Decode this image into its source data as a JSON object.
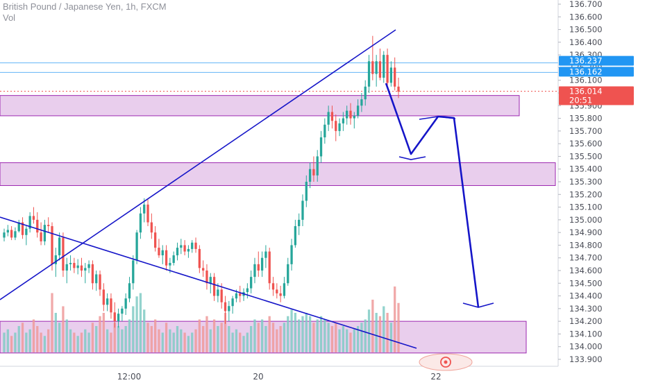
{
  "header": {
    "title": "British Pound / Japanese Yen, 1h, FXCM",
    "volume_label": "Vol"
  },
  "chart_data": {
    "type": "candlestick",
    "symbol": "British Pound / Japanese Yen",
    "interval": "1h",
    "source": "FXCM",
    "y_axis": {
      "min": 133.9,
      "max": 136.7,
      "step": 0.1,
      "ticks": [
        "133.900",
        "134.000",
        "134.100",
        "134.200",
        "134.300",
        "134.400",
        "134.500",
        "134.600",
        "134.700",
        "134.800",
        "134.900",
        "135.000",
        "135.100",
        "135.200",
        "135.300",
        "135.400",
        "135.500",
        "135.600",
        "135.700",
        "135.800",
        "135.900",
        "136.000",
        "136.100",
        "136.200",
        "136.300",
        "136.400",
        "136.500",
        "136.600",
        "136.700"
      ]
    },
    "x_axis": {
      "labels": [
        "12:00",
        "20",
        "22"
      ]
    },
    "price_tags": [
      {
        "value": "136.237",
        "color": "#2196f3"
      },
      {
        "value": "136.162",
        "color": "#2196f3"
      },
      {
        "value": "136.014",
        "color": "#ef5350"
      },
      {
        "value": "20:51",
        "color": "#ef5350"
      }
    ],
    "horizontal_lines": [
      136.237,
      136.162
    ],
    "last_price": 136.014,
    "zones": [
      {
        "from": 135.82,
        "to": 135.98
      },
      {
        "from": 135.27,
        "to": 135.45
      },
      {
        "from": 133.95,
        "to": 134.2
      }
    ],
    "colors": {
      "up": "#26a69a",
      "down": "#ef5350",
      "zone": "#e1bee7",
      "lines": "#1515c8"
    },
    "candles": [
      [
        134.86,
        134.93,
        134.83,
        134.9
      ],
      [
        134.9,
        134.96,
        134.87,
        134.92
      ],
      [
        134.92,
        134.95,
        134.84,
        134.86
      ],
      [
        134.86,
        134.94,
        134.84,
        134.91
      ],
      [
        134.91,
        135.0,
        134.9,
        134.98
      ],
      [
        134.98,
        135.02,
        134.85,
        134.88
      ],
      [
        134.88,
        134.95,
        134.8,
        134.93
      ],
      [
        134.93,
        135.06,
        134.9,
        135.03
      ],
      [
        135.03,
        135.1,
        134.97,
        135.0
      ],
      [
        135.0,
        135.06,
        134.86,
        134.9
      ],
      [
        134.9,
        134.98,
        134.8,
        134.83
      ],
      [
        134.83,
        135.0,
        134.8,
        134.96
      ],
      [
        134.96,
        135.02,
        134.9,
        134.95
      ],
      [
        134.95,
        134.98,
        134.6,
        134.65
      ],
      [
        134.65,
        134.78,
        134.55,
        134.72
      ],
      [
        134.72,
        134.9,
        134.68,
        134.86
      ],
      [
        134.86,
        134.9,
        134.55,
        134.6
      ],
      [
        134.6,
        134.7,
        134.5,
        134.65
      ],
      [
        134.65,
        134.72,
        134.6,
        134.66
      ],
      [
        134.66,
        134.7,
        134.58,
        134.62
      ],
      [
        134.62,
        134.69,
        134.57,
        134.64
      ],
      [
        134.64,
        134.7,
        134.55,
        134.6
      ],
      [
        134.6,
        134.66,
        134.5,
        134.62
      ],
      [
        134.62,
        134.68,
        134.58,
        134.65
      ],
      [
        134.65,
        134.68,
        134.45,
        134.5
      ],
      [
        134.5,
        134.6,
        134.44,
        134.57
      ],
      [
        134.57,
        134.6,
        134.4,
        134.45
      ],
      [
        134.45,
        134.5,
        134.28,
        134.33
      ],
      [
        134.33,
        134.42,
        134.28,
        134.38
      ],
      [
        134.38,
        134.42,
        134.22,
        134.27
      ],
      [
        134.27,
        134.35,
        134.15,
        134.2
      ],
      [
        134.2,
        134.3,
        134.15,
        134.26
      ],
      [
        134.26,
        134.32,
        134.2,
        134.3
      ],
      [
        134.3,
        134.42,
        134.25,
        134.38
      ],
      [
        134.38,
        134.55,
        134.35,
        134.5
      ],
      [
        134.5,
        134.72,
        134.45,
        134.68
      ],
      [
        134.68,
        134.92,
        134.65,
        134.9
      ],
      [
        134.9,
        135.1,
        134.85,
        135.05
      ],
      [
        135.05,
        135.17,
        134.98,
        135.12
      ],
      [
        135.12,
        135.16,
        134.95,
        134.98
      ],
      [
        134.98,
        135.05,
        134.85,
        134.9
      ],
      [
        134.9,
        134.95,
        134.75,
        134.78
      ],
      [
        134.78,
        134.85,
        134.7,
        134.72
      ],
      [
        134.72,
        134.8,
        134.65,
        134.76
      ],
      [
        134.76,
        134.8,
        134.6,
        134.64
      ],
      [
        134.64,
        134.7,
        134.58,
        134.66
      ],
      [
        134.66,
        134.75,
        134.64,
        134.72
      ],
      [
        134.72,
        134.82,
        134.68,
        134.78
      ],
      [
        134.78,
        134.85,
        134.73,
        134.8
      ],
      [
        134.8,
        134.84,
        134.72,
        134.75
      ],
      [
        134.75,
        134.8,
        134.7,
        134.77
      ],
      [
        134.77,
        134.84,
        134.74,
        134.82
      ],
      [
        134.82,
        134.86,
        134.74,
        134.77
      ],
      [
        134.77,
        134.8,
        134.58,
        134.62
      ],
      [
        134.62,
        134.68,
        134.55,
        134.6
      ],
      [
        134.6,
        134.65,
        134.45,
        134.5
      ],
      [
        134.5,
        134.58,
        134.42,
        134.55
      ],
      [
        134.55,
        134.58,
        134.36,
        134.4
      ],
      [
        134.4,
        134.5,
        134.35,
        134.45
      ],
      [
        134.45,
        134.5,
        134.3,
        134.35
      ],
      [
        134.35,
        134.4,
        134.18,
        134.28
      ],
      [
        134.28,
        134.36,
        134.2,
        134.32
      ],
      [
        134.32,
        134.4,
        134.26,
        134.38
      ],
      [
        134.38,
        134.45,
        134.35,
        134.42
      ],
      [
        134.42,
        134.48,
        134.35,
        134.4
      ],
      [
        134.4,
        134.46,
        134.36,
        134.43
      ],
      [
        134.43,
        134.5,
        134.38,
        134.46
      ],
      [
        134.46,
        134.6,
        134.42,
        134.55
      ],
      [
        134.55,
        134.7,
        134.5,
        134.65
      ],
      [
        134.65,
        134.75,
        134.55,
        134.6
      ],
      [
        134.6,
        134.75,
        134.55,
        134.7
      ],
      [
        134.7,
        134.8,
        134.62,
        134.75
      ],
      [
        134.75,
        134.78,
        134.45,
        134.5
      ],
      [
        134.5,
        134.55,
        134.4,
        134.45
      ],
      [
        134.45,
        134.5,
        134.38,
        134.42
      ],
      [
        134.42,
        134.48,
        134.35,
        134.4
      ],
      [
        134.4,
        134.55,
        134.38,
        134.5
      ],
      [
        134.5,
        134.7,
        134.48,
        134.65
      ],
      [
        134.65,
        134.85,
        134.6,
        134.8
      ],
      [
        134.8,
        135.0,
        134.78,
        134.95
      ],
      [
        134.95,
        135.05,
        134.88,
        135.0
      ],
      [
        135.0,
        135.2,
        134.95,
        135.15
      ],
      [
        135.15,
        135.35,
        135.1,
        135.3
      ],
      [
        135.3,
        135.45,
        135.25,
        135.4
      ],
      [
        135.4,
        135.5,
        135.3,
        135.35
      ],
      [
        135.35,
        135.55,
        135.3,
        135.5
      ],
      [
        135.5,
        135.7,
        135.45,
        135.65
      ],
      [
        135.65,
        135.8,
        135.6,
        135.75
      ],
      [
        135.75,
        135.9,
        135.7,
        135.85
      ],
      [
        135.85,
        135.9,
        135.72,
        135.78
      ],
      [
        135.78,
        135.83,
        135.62,
        135.7
      ],
      [
        135.7,
        135.8,
        135.66,
        135.76
      ],
      [
        135.76,
        135.85,
        135.7,
        135.8
      ],
      [
        135.8,
        135.9,
        135.75,
        135.86
      ],
      [
        135.86,
        135.92,
        135.75,
        135.8
      ],
      [
        135.8,
        135.85,
        135.72,
        135.82
      ],
      [
        135.82,
        135.95,
        135.8,
        135.9
      ],
      [
        135.9,
        136.0,
        135.85,
        135.95
      ],
      [
        135.95,
        136.1,
        135.9,
        136.05
      ],
      [
        136.05,
        136.3,
        136.0,
        136.25
      ],
      [
        136.25,
        136.45,
        136.1,
        136.15
      ],
      [
        136.15,
        136.3,
        136.05,
        136.25
      ],
      [
        136.25,
        136.35,
        136.1,
        136.12
      ],
      [
        136.12,
        136.33,
        136.08,
        136.3
      ],
      [
        136.3,
        136.35,
        136.05,
        136.08
      ],
      [
        136.08,
        136.25,
        136.05,
        136.2
      ],
      [
        136.2,
        136.28,
        136.02,
        136.05
      ],
      [
        136.05,
        136.12,
        135.96,
        136.01
      ]
    ],
    "volumes": [
      0.3,
      0.35,
      0.25,
      0.3,
      0.4,
      0.45,
      0.3,
      0.35,
      0.5,
      0.4,
      0.3,
      0.25,
      0.35,
      0.9,
      0.6,
      0.45,
      0.7,
      0.5,
      0.35,
      0.3,
      0.25,
      0.3,
      0.35,
      0.3,
      0.45,
      0.4,
      0.55,
      0.6,
      0.35,
      0.3,
      0.45,
      0.4,
      0.35,
      0.4,
      0.5,
      0.7,
      0.85,
      0.9,
      0.65,
      0.45,
      0.4,
      0.5,
      0.35,
      0.3,
      0.45,
      0.35,
      0.3,
      0.4,
      0.35,
      0.3,
      0.25,
      0.3,
      0.35,
      0.5,
      0.4,
      0.55,
      0.35,
      0.5,
      0.4,
      0.45,
      0.6,
      0.4,
      0.3,
      0.35,
      0.3,
      0.25,
      0.3,
      0.4,
      0.5,
      0.45,
      0.5,
      0.4,
      0.55,
      0.45,
      0.35,
      0.4,
      0.45,
      0.55,
      0.65,
      0.6,
      0.5,
      0.55,
      0.6,
      0.55,
      0.45,
      0.5,
      0.55,
      0.5,
      0.45,
      0.4,
      0.45,
      0.35,
      0.4,
      0.35,
      0.3,
      0.35,
      0.4,
      0.45,
      0.5,
      0.65,
      0.8,
      0.6,
      0.55,
      0.7,
      0.6,
      0.45,
      1.0,
      0.75
    ]
  }
}
